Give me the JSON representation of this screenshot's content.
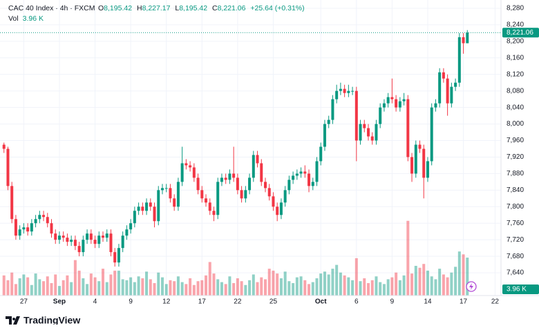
{
  "chart_data": {
    "type": "candlestick",
    "title": "CAC 40 Index · 4h · FXCM",
    "ohlc_header": [
      {
        "key": "O",
        "value": "8,195.42"
      },
      {
        "key": "H",
        "value": "8,227.17"
      },
      {
        "key": "L",
        "value": "8,195.42"
      },
      {
        "key": "C",
        "value": "8,221.06"
      }
    ],
    "change_label": "+25.64 (+0.31%)",
    "volume_title": "Vol",
    "volume_label": "3.96 K",
    "brand": "TradingView",
    "up_color": "#089981",
    "down_color": "#f23645",
    "grid": true,
    "xlim": [
      -1,
      125.5
    ],
    "xticks": [
      {
        "value": 5,
        "label": "27"
      },
      {
        "value": 14,
        "label": "Sep"
      },
      {
        "value": 23,
        "label": "4"
      },
      {
        "value": 32,
        "label": "9"
      },
      {
        "value": 41,
        "label": "12"
      },
      {
        "value": 50,
        "label": "17"
      },
      {
        "value": 59,
        "label": "22"
      },
      {
        "value": 68,
        "label": "25"
      },
      {
        "value": 80,
        "label": "Oct"
      },
      {
        "value": 89,
        "label": "6"
      },
      {
        "value": 98,
        "label": "9"
      },
      {
        "value": 107,
        "label": "14"
      },
      {
        "value": 116,
        "label": "17"
      },
      {
        "value": 124,
        "label": "22"
      }
    ],
    "ylim": [
      7585,
      8300
    ],
    "yticks": [
      {
        "value": 7640,
        "label": "7,640"
      },
      {
        "value": 7680,
        "label": "7,680"
      },
      {
        "value": 7720,
        "label": "7,720"
      },
      {
        "value": 7760,
        "label": "7,760"
      },
      {
        "value": 7800,
        "label": "7,800"
      },
      {
        "value": 7840,
        "label": "7,840"
      },
      {
        "value": 7880,
        "label": "7,880"
      },
      {
        "value": 7920,
        "label": "7,920"
      },
      {
        "value": 7960,
        "label": "7,960"
      },
      {
        "value": 8000,
        "label": "8,000"
      },
      {
        "value": 8040,
        "label": "8,040"
      },
      {
        "value": 8080,
        "label": "8,080"
      },
      {
        "value": 8120,
        "label": "8,120"
      },
      {
        "value": 8160,
        "label": "8,160"
      },
      {
        "value": 8200,
        "label": "8,200"
      },
      {
        "value": 8240,
        "label": "8,240"
      },
      {
        "value": 8280,
        "label": "8,280"
      }
    ],
    "volume_lim": [
      0,
      8
    ],
    "open": [
      7950,
      7940,
      7850,
      7770,
      7730,
      7745,
      7750,
      7740,
      7760,
      7770,
      7780,
      7775,
      7760,
      7735,
      7720,
      7730,
      7725,
      7715,
      7720,
      7705,
      7690,
      7720,
      7735,
      7720,
      7710,
      7730,
      7725,
      7735,
      7690,
      7665,
      7700,
      7730,
      7745,
      7760,
      7790,
      7800,
      7790,
      7810,
      7800,
      7765,
      7840,
      7845,
      7845,
      7820,
      7800,
      7860,
      7905,
      7900,
      7895,
      7870,
      7840,
      7820,
      7810,
      7790,
      7780,
      7860,
      7870,
      7865,
      7880,
      7870,
      7840,
      7820,
      7840,
      7870,
      7925,
      7905,
      7860,
      7845,
      7825,
      7800,
      7780,
      7810,
      7840,
      7865,
      7875,
      7880,
      7885,
      7880,
      7850,
      7860,
      7910,
      7945,
      8000,
      8010,
      8060,
      8080,
      8085,
      8075,
      8080,
      8080,
      7960,
      8000,
      7990,
      7970,
      7960,
      8000,
      8040,
      8050,
      8065,
      8060,
      8040,
      8055,
      8060,
      7920,
      7880,
      7950,
      7940,
      7870,
      7910,
      8040,
      8050,
      8125,
      8110,
      8050,
      8090,
      8100,
      8210,
      8195.42
    ],
    "high": [
      7955,
      7945,
      7860,
      7780,
      7755,
      7760,
      7760,
      7770,
      7780,
      7790,
      7790,
      7785,
      7770,
      7745,
      7740,
      7740,
      7735,
      7730,
      7730,
      7715,
      7730,
      7745,
      7745,
      7730,
      7740,
      7740,
      7745,
      7745,
      7700,
      7710,
      7740,
      7755,
      7770,
      7800,
      7810,
      7810,
      7820,
      7820,
      7810,
      7850,
      7855,
      7855,
      7855,
      7830,
      7870,
      7945,
      7915,
      7910,
      7905,
      7880,
      7850,
      7830,
      7820,
      7800,
      7870,
      7880,
      7880,
      7890,
      7945,
      7880,
      7850,
      7850,
      7880,
      7935,
      7935,
      7915,
      7870,
      7855,
      7835,
      7810,
      7820,
      7850,
      7875,
      7885,
      7890,
      7895,
      7900,
      7890,
      7870,
      7920,
      7955,
      8010,
      8020,
      8070,
      8095,
      8100,
      8095,
      8095,
      8090,
      8090,
      8010,
      8010,
      8000,
      7980,
      8010,
      8050,
      8060,
      8075,
      8110,
      8070,
      8065,
      8075,
      8070,
      7930,
      7960,
      7960,
      7950,
      7920,
      8050,
      8060,
      8135,
      8135,
      8120,
      8100,
      8110,
      8220,
      8220,
      8227.17
    ],
    "low": [
      7930,
      7840,
      7760,
      7720,
      7720,
      7735,
      7730,
      7730,
      7750,
      7760,
      7765,
      7750,
      7725,
      7710,
      7710,
      7715,
      7705,
      7705,
      7695,
      7680,
      7680,
      7710,
      7710,
      7700,
      7700,
      7715,
      7715,
      7680,
      7655,
      7655,
      7690,
      7720,
      7735,
      7750,
      7780,
      7780,
      7780,
      7790,
      7750,
      7755,
      7830,
      7835,
      7810,
      7790,
      7790,
      7850,
      7890,
      7885,
      7860,
      7830,
      7810,
      7800,
      7780,
      7765,
      7770,
      7850,
      7855,
      7855,
      7860,
      7830,
      7810,
      7810,
      7830,
      7860,
      7895,
      7850,
      7835,
      7815,
      7790,
      7765,
      7770,
      7800,
      7830,
      7855,
      7865,
      7870,
      7870,
      7835,
      7840,
      7850,
      7900,
      7935,
      7990,
      8000,
      8050,
      8070,
      8065,
      8065,
      8070,
      7910,
      7950,
      7980,
      7960,
      7950,
      7950,
      7990,
      8030,
      8040,
      8050,
      8030,
      8030,
      8045,
      7910,
      7860,
      7870,
      7930,
      7820,
      7860,
      7900,
      8030,
      8040,
      8100,
      8020,
      8040,
      8080,
      8090,
      8170,
      8195.42
    ],
    "close": [
      7940,
      7850,
      7770,
      7730,
      7745,
      7750,
      7740,
      7760,
      7770,
      7780,
      7775,
      7760,
      7735,
      7720,
      7730,
      7725,
      7715,
      7720,
      7705,
      7690,
      7720,
      7735,
      7720,
      7710,
      7730,
      7725,
      7735,
      7690,
      7665,
      7700,
      7730,
      7745,
      7760,
      7790,
      7800,
      7790,
      7810,
      7800,
      7765,
      7840,
      7845,
      7845,
      7820,
      7800,
      7860,
      7905,
      7900,
      7895,
      7870,
      7840,
      7820,
      7810,
      7790,
      7780,
      7860,
      7870,
      7865,
      7880,
      7870,
      7840,
      7820,
      7840,
      7870,
      7925,
      7905,
      7860,
      7845,
      7825,
      7800,
      7780,
      7810,
      7840,
      7865,
      7875,
      7880,
      7885,
      7880,
      7850,
      7860,
      7910,
      7945,
      8000,
      8010,
      8060,
      8080,
      8085,
      8075,
      8080,
      8080,
      7960,
      8000,
      7990,
      7970,
      7960,
      8000,
      8040,
      8050,
      8065,
      8060,
      8040,
      8055,
      8060,
      7920,
      7880,
      7950,
      7940,
      7870,
      7910,
      8040,
      8050,
      8125,
      8110,
      8050,
      8090,
      8100,
      8210,
      8195.42,
      8221.06
    ],
    "volume": [
      2.1,
      1.6,
      2.4,
      1.2,
      1.8,
      2.2,
      1.9,
      1.1,
      2.3,
      1.7,
      1.5,
      2.0,
      1.3,
      2.2,
      1.0,
      1.6,
      2.1,
      1.4,
      3.7,
      2.6,
      1.8,
      1.2,
      2.3,
      1.9,
      1.5,
      2.8,
      1.4,
      2.2,
      2.6,
      2.6,
      1.7,
      1.6,
      1.9,
      1.4,
      2.0,
      1.8,
      2.5,
      1.7,
      1.3,
      2.4,
      1.9,
      1.2,
      1.6,
      1.5,
      2.0,
      1.4,
      1.2,
      1.8,
      1.1,
      1.5,
      1.6,
      2.1,
      3.5,
      2.3,
      1.7,
      1.4,
      1.2,
      2.0,
      1.3,
      1.8,
      1.5,
      1.1,
      1.6,
      2.2,
      1.4,
      1.9,
      1.7,
      2.8,
      2.6,
      2.3,
      1.8,
      2.5,
      1.5,
      1.3,
      1.9,
      2.0,
      1.6,
      1.2,
      1.4,
      1.8,
      2.3,
      2.5,
      2.2,
      2.8,
      3.2,
      2.4,
      2.1,
      1.9,
      1.6,
      3.9,
      1.5,
      1.8,
      1.3,
      1.6,
      2.0,
      1.4,
      1.2,
      1.7,
      1.9,
      2.4,
      1.6,
      2.1,
      7.8,
      2.3,
      3.1,
      2.9,
      3.3,
      2.6,
      2.0,
      1.7,
      2.8,
      2.2,
      1.9,
      2.4,
      3.0,
      4.6,
      4.3,
      3.96
    ]
  }
}
